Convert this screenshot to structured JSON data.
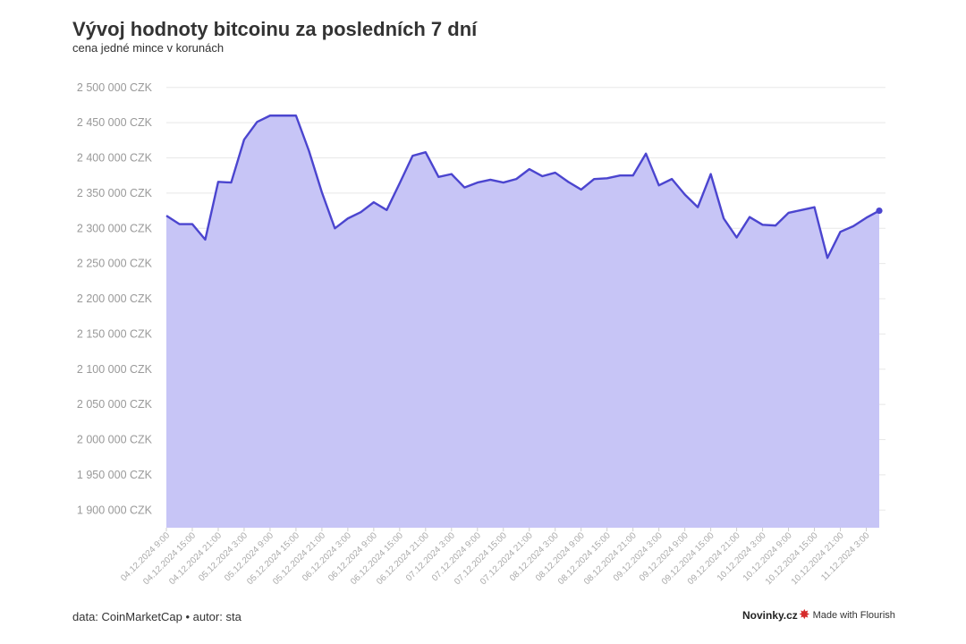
{
  "header": {
    "title": "Vývoj hodnoty bitcoinu za posledních 7 dní",
    "subtitle": "cena jedné mince v korunách"
  },
  "footer": {
    "source": "data: CoinMarketCap • autor: sta",
    "brand": "Novinky.cz",
    "flourish_icon": "flourish-asterisk-icon",
    "flourish_label": "Made with Flourish"
  },
  "colors": {
    "line": "#4b45cf",
    "area": "#c7c5f6",
    "grid": "#e8e8e8",
    "flourish_icon": "#d62b2b"
  },
  "chart_data": {
    "type": "area",
    "title": "Vývoj hodnoty bitcoinu za posledních 7 dní",
    "subtitle": "cena jedné mince v korunách",
    "xlabel": "",
    "ylabel": "",
    "ylim": [
      1875000,
      2520000
    ],
    "y_ticks": [
      1900000,
      1950000,
      2000000,
      2050000,
      2100000,
      2150000,
      2200000,
      2250000,
      2300000,
      2350000,
      2400000,
      2450000,
      2500000
    ],
    "y_tick_labels": [
      "1 900 000 CZK",
      "1 950 000 CZK",
      "2 000 000 CZK",
      "2 050 000 CZK",
      "2 100 000 CZK",
      "2 150 000 CZK",
      "2 200 000 CZK",
      "2 250 000 CZK",
      "2 300 000 CZK",
      "2 350 000 CZK",
      "2 400 000 CZK",
      "2 450 000 CZK",
      "2 500 000 CZK"
    ],
    "x_tick_labels": [
      "04.12.2024 9:00",
      "04.12.2024 15:00",
      "04.12.2024 21:00",
      "05.12.2024 3:00",
      "05.12.2024 9:00",
      "05.12.2024 15:00",
      "05.12.2024 21:00",
      "06.12.2024 3:00",
      "06.12.2024 9:00",
      "06.12.2024 15:00",
      "06.12.2024 21:00",
      "07.12.2024 3:00",
      "07.12.2024 9:00",
      "07.12.2024 15:00",
      "07.12.2024 21:00",
      "08.12.2024 3:00",
      "08.12.2024 9:00",
      "08.12.2024 15:00",
      "08.12.2024 21:00",
      "09.12.2024 3:00",
      "09.12.2024 9:00",
      "09.12.2024 15:00",
      "09.12.2024 21:00",
      "10.12.2024 3:00",
      "10.12.2024 9:00",
      "10.12.2024 15:00",
      "10.12.2024 21:00",
      "11.12.2024 3:00"
    ],
    "interval_hours": 3,
    "grid": true,
    "legend": "none",
    "series": [
      {
        "values": [
          2318000,
          2306000,
          2306000,
          2284000,
          2366000,
          2365000,
          2426000,
          2451000,
          2460000,
          2460000,
          2460000,
          2410000,
          2351000,
          2300000,
          2314000,
          2323000,
          2337000,
          2326000,
          2364000,
          2403000,
          2408000,
          2373000,
          2377000,
          2358000,
          2365000,
          2369000,
          2365000,
          2370000,
          2384000,
          2374000,
          2379000,
          2366000,
          2355000,
          2370000,
          2371000,
          2375000,
          2375000,
          2406000,
          2361000,
          2370000,
          2348000,
          2330000,
          2377000,
          2314000,
          2287000,
          2316000,
          2305000,
          2304000,
          2322000,
          2326000,
          2330000,
          2258000,
          2295000,
          2303000,
          2315000,
          2325000
        ]
      }
    ]
  }
}
